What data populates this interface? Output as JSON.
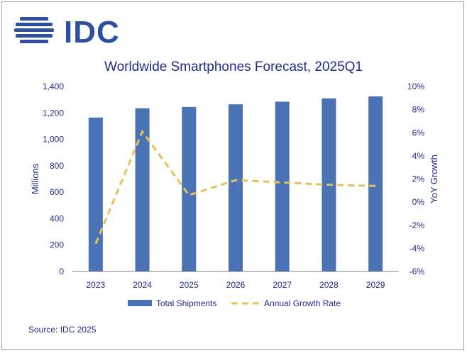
{
  "logo": {
    "text": "IDC"
  },
  "chart_data": {
    "type": "bar",
    "title": "Worldwide Smartphones Forecast, 2025Q1",
    "categories": [
      "2023",
      "2024",
      "2025",
      "2026",
      "2027",
      "2028",
      "2029"
    ],
    "series": [
      {
        "name": "Total Shipments",
        "kind": "bar",
        "axis": "left",
        "color": "#4a73b5",
        "values": [
          1165,
          1235,
          1245,
          1265,
          1285,
          1310,
          1325
        ]
      },
      {
        "name": "Annual Growth Rate",
        "kind": "line",
        "axis": "right",
        "color": "#e8c15a",
        "dash": "dashed",
        "values": [
          -3.6,
          6.1,
          0.6,
          1.9,
          1.7,
          1.5,
          1.4
        ]
      }
    ],
    "ylabel": "Millions",
    "ylim": [
      0,
      1400
    ],
    "yticks": [
      "0",
      "200",
      "400",
      "600",
      "800",
      "1,000",
      "1,200",
      "1,400"
    ],
    "y2label": "YoY Growth",
    "y2lim": [
      -6,
      10
    ],
    "y2ticks": [
      "-6%",
      "-4%",
      "-2%",
      "0%",
      "2%",
      "4%",
      "6%",
      "8%",
      "10%"
    ],
    "legend": {
      "position": "bottom"
    }
  },
  "source": "Source: IDC 2025"
}
